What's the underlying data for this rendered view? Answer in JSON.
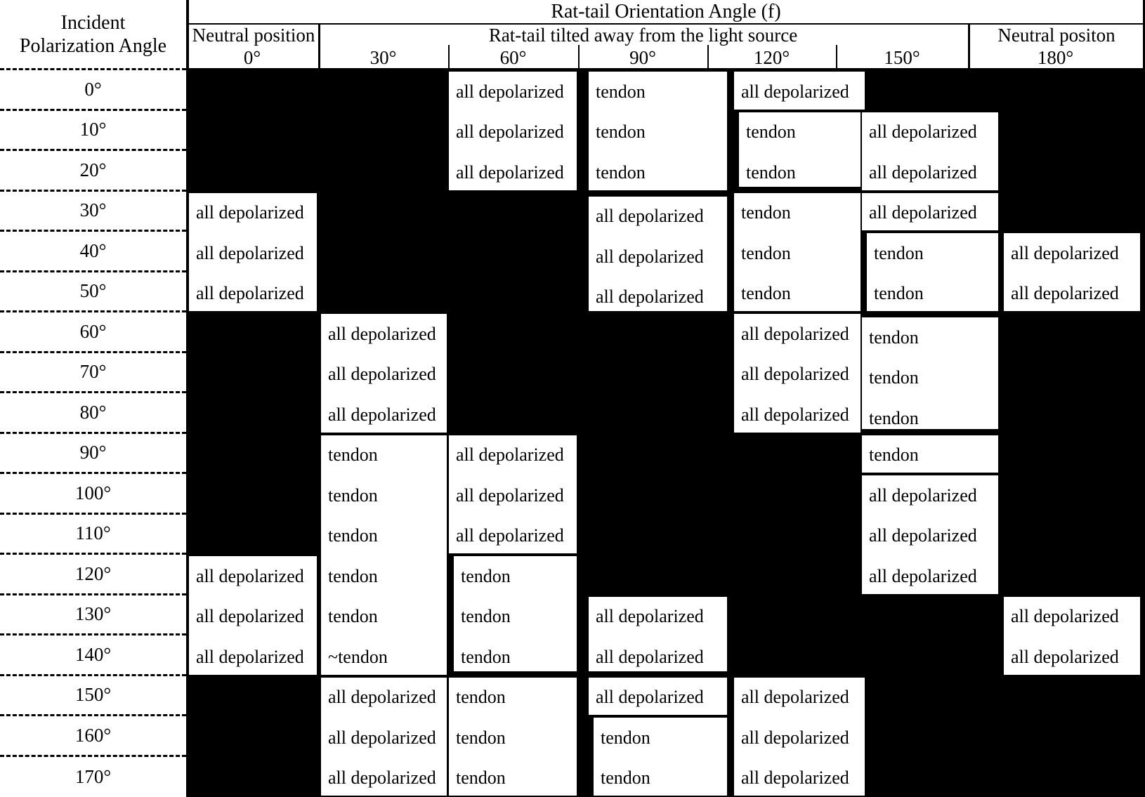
{
  "figure": {
    "corner": {
      "line1": "Incident",
      "line2": "Polarization Angle"
    },
    "col_header_title": "Rat-tail Orientation Angle (f)",
    "subheaders": {
      "left": "Neutral position",
      "middle": "Rat-tail tilted away from the light source",
      "right": "Neutral positon"
    },
    "ticks": [
      "0°",
      "30°",
      "60°",
      "90°",
      "120°",
      "150°",
      "180°"
    ],
    "row_labels": [
      "0°",
      "10°",
      "20°",
      "30°",
      "40°",
      "50°",
      "60°",
      "70°",
      "80°",
      "90°",
      "100°",
      "110°",
      "120°",
      "130°",
      "140°",
      "150°",
      "160°",
      "170°"
    ],
    "cell_values": {
      "depolarized": "all depolarized",
      "tendon": "tendon",
      "approx_tendon": "~tendon"
    },
    "blocks": [
      {
        "col": 2,
        "row": 0,
        "texts": [
          "all depolarized",
          "all depolarized",
          "all depolarized"
        ],
        "thick": []
      },
      {
        "col": 3,
        "row": 0,
        "texts": [
          "tendon",
          "tendon",
          "tendon"
        ],
        "thick": []
      },
      {
        "col": 4,
        "row": 0,
        "texts": [
          "all depolarized"
        ],
        "thick": []
      },
      {
        "col": 4,
        "row": 1,
        "texts": [
          "tendon",
          "tendon"
        ],
        "thick": [
          "left",
          "bottom"
        ]
      },
      {
        "col": 5,
        "row": 1,
        "texts": [
          "all depolarized",
          "all depolarized"
        ],
        "thick": []
      },
      {
        "col": 0,
        "row": 3,
        "texts": [
          "all depolarized",
          "all depolarized",
          "all depolarized"
        ],
        "thick": []
      },
      {
        "col": 3,
        "row": 3,
        "texts": [
          "all depolarized",
          "all depolarized",
          "all depolarized"
        ],
        "thick": [
          "top"
        ]
      },
      {
        "col": 4,
        "row": 3,
        "texts": [
          "tendon",
          "tendon",
          "tendon"
        ],
        "thick": []
      },
      {
        "col": 5,
        "row": 3,
        "texts": [
          "all depolarized"
        ],
        "thick": []
      },
      {
        "col": 5,
        "row": 4,
        "texts": [
          "tendon",
          "tendon"
        ],
        "thick": [
          "left"
        ]
      },
      {
        "col": 6,
        "row": 4,
        "texts": [
          "all depolarized",
          "all depolarized"
        ],
        "thick": []
      },
      {
        "col": 1,
        "row": 6,
        "texts": [
          "all depolarized",
          "all depolarized",
          "all depolarized"
        ],
        "thick": []
      },
      {
        "col": 4,
        "row": 6,
        "texts": [
          "all depolarized",
          "all depolarized",
          "all depolarized"
        ],
        "thick": []
      },
      {
        "col": 5,
        "row": 6,
        "texts": [
          "tendon",
          "tendon",
          "tendon"
        ],
        "thick": [
          "top",
          "bottom"
        ]
      },
      {
        "col": 1,
        "row": 9,
        "texts": [
          "tendon",
          "tendon",
          "tendon",
          "tendon",
          "tendon",
          "~tendon"
        ],
        "thick": []
      },
      {
        "col": 2,
        "row": 9,
        "texts": [
          "all depolarized",
          "all depolarized",
          "all depolarized"
        ],
        "thick": []
      },
      {
        "col": 5,
        "row": 9,
        "texts": [
          "tendon"
        ],
        "thick": []
      },
      {
        "col": 5,
        "row": 10,
        "texts": [
          "all depolarized",
          "all depolarized",
          "all depolarized"
        ],
        "thick": []
      },
      {
        "col": 0,
        "row": 12,
        "texts": [
          "all depolarized",
          "all depolarized",
          "all depolarized"
        ],
        "thick": []
      },
      {
        "col": 2,
        "row": 12,
        "texts": [
          "tendon",
          "tendon",
          "tendon"
        ],
        "thick": [
          "left",
          "bottom"
        ]
      },
      {
        "col": 3,
        "row": 13,
        "texts": [
          "all depolarized",
          "all depolarized"
        ],
        "thick": [
          "bottom"
        ]
      },
      {
        "col": 6,
        "row": 13,
        "texts": [
          "all depolarized",
          "all depolarized"
        ],
        "thick": []
      },
      {
        "col": 1,
        "row": 15,
        "texts": [
          "all depolarized",
          "all depolarized",
          "all depolarized"
        ],
        "thick": []
      },
      {
        "col": 2,
        "row": 15,
        "texts": [
          "tendon",
          "tendon",
          "tendon"
        ],
        "thick": []
      },
      {
        "col": 3,
        "row": 15,
        "texts": [
          "all depolarized"
        ],
        "thick": []
      },
      {
        "col": 3,
        "row": 16,
        "texts": [
          "tendon",
          "tendon"
        ],
        "thick": [
          "left"
        ]
      },
      {
        "col": 4,
        "row": 15,
        "texts": [
          "all depolarized",
          "all depolarized",
          "all depolarized"
        ],
        "thick": []
      }
    ]
  },
  "colors": {
    "ink": "#000000",
    "paper": "#ffffff"
  }
}
